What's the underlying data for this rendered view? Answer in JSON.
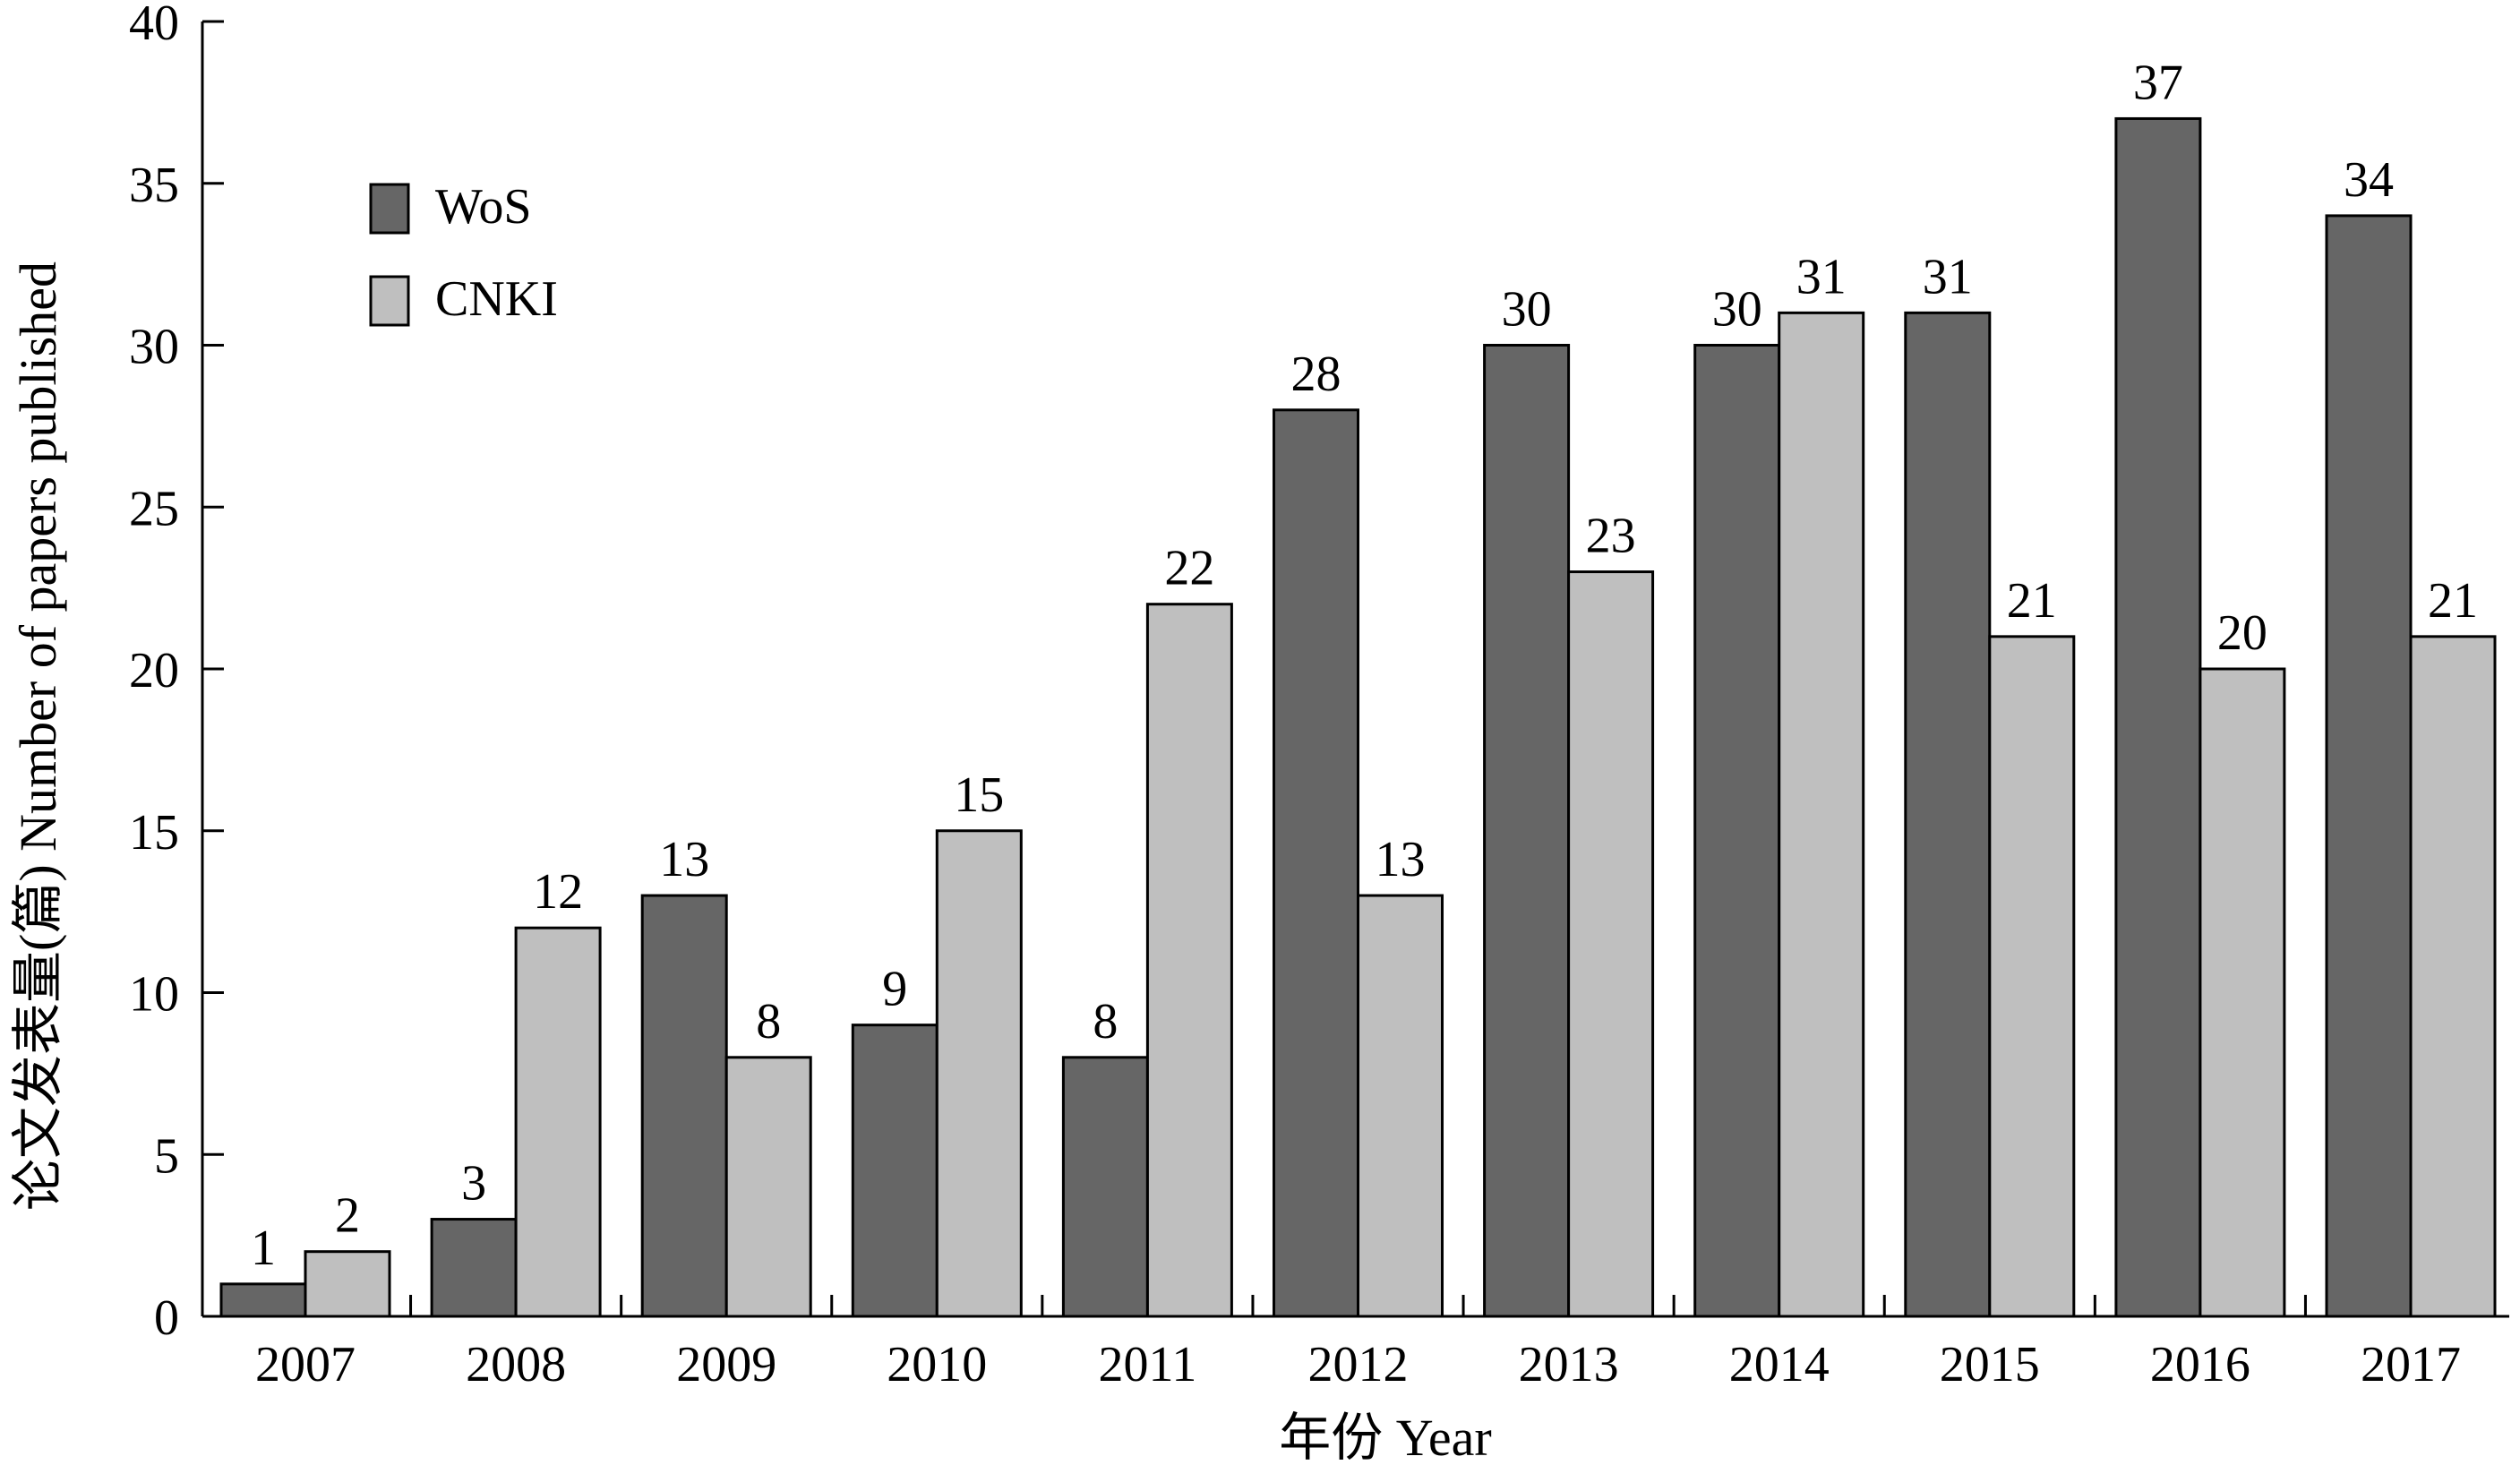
{
  "chart_data": {
    "type": "bar",
    "categories": [
      "2007",
      "2008",
      "2009",
      "2010",
      "2011",
      "2012",
      "2013",
      "2014",
      "2015",
      "2016",
      "2017"
    ],
    "series": [
      {
        "name": "WoS",
        "color": "#666666",
        "values": [
          1,
          3,
          13,
          9,
          8,
          28,
          30,
          30,
          31,
          37,
          34
        ]
      },
      {
        "name": "CNKI",
        "color": "#bfbfbf",
        "values": [
          2,
          12,
          8,
          15,
          22,
          13,
          23,
          31,
          21,
          20,
          21
        ]
      }
    ],
    "xlabel": "年份 Year",
    "ylabel": "论文发表量(篇) Number of papers published",
    "ylim": [
      0,
      40
    ],
    "yticks": [
      "0",
      "5",
      "10",
      "15",
      "20",
      "25",
      "30",
      "35",
      "40"
    ],
    "grid": false,
    "legend_position": "top-left"
  }
}
